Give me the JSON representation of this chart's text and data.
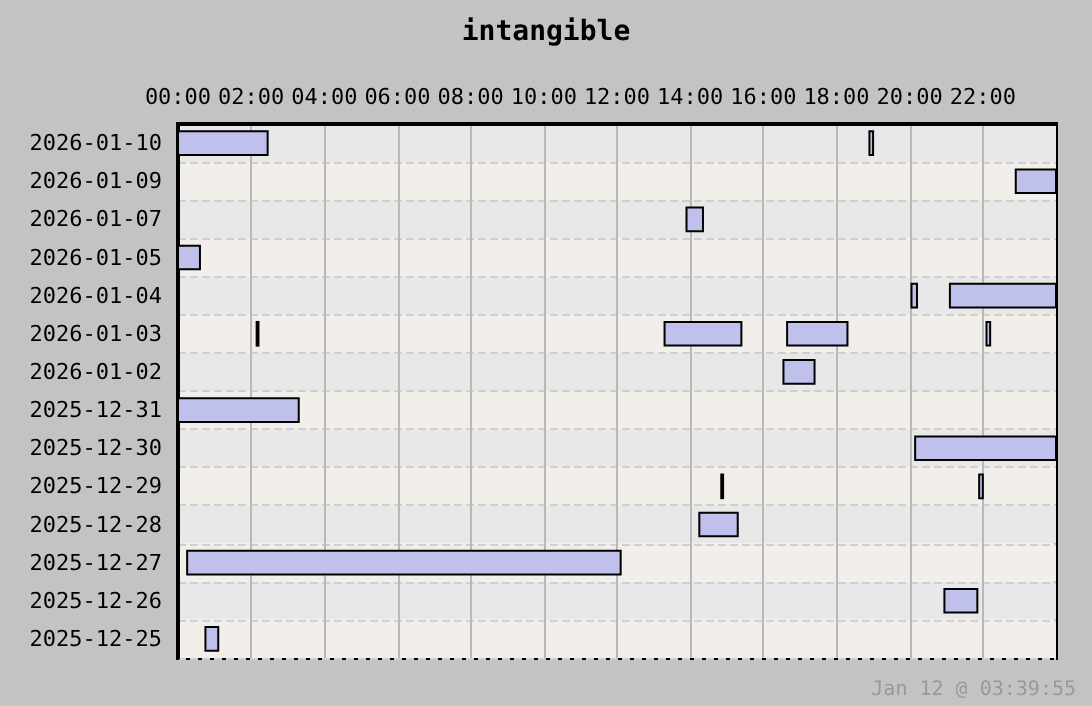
{
  "chart_data": {
    "type": "bar",
    "orientation": "horizontal",
    "title": "intangible",
    "annotations": [
      "Jan 12 @ 03:39:55"
    ],
    "categories": [
      "2026-01-10",
      "2026-01-09",
      "2026-01-07",
      "2026-01-05",
      "2026-01-04",
      "2026-01-03",
      "2026-01-02",
      "2025-12-31",
      "2025-12-30",
      "2025-12-29",
      "2025-12-28",
      "2025-12-27",
      "2025-12-26",
      "2025-12-25"
    ],
    "series": [
      {
        "color": "#c0c0ec",
        "base": [
          0,
          22.9,
          13.9,
          0,
          20.05,
          2.15,
          16.55,
          0,
          20.15,
          14.85,
          14.25,
          0.25,
          20.95,
          0.75
        ],
        "values": [
          2.45,
          1.1,
          0.45,
          0.6,
          0.15,
          0.05,
          0.85,
          3.3,
          3.85,
          0.05,
          1.05,
          11.85,
          0.9,
          0.35
        ]
      },
      {
        "color": "#c0c0ec",
        "base": [
          18.9,
          null,
          null,
          null,
          21.1,
          13.3,
          null,
          null,
          null,
          21.9,
          null,
          null,
          null,
          null
        ],
        "values": [
          0.1,
          null,
          null,
          null,
          2.9,
          2.1,
          null,
          null,
          null,
          0.1,
          null,
          null,
          null,
          null
        ]
      },
      {
        "color": "#c0c0ec",
        "base": [
          null,
          null,
          null,
          null,
          null,
          16.65,
          null,
          null,
          null,
          null,
          null,
          null,
          null,
          null
        ],
        "values": [
          null,
          null,
          null,
          null,
          null,
          1.65,
          null,
          null,
          null,
          null,
          null,
          null,
          null,
          null
        ]
      },
      {
        "color": "#c0c0ec",
        "base": [
          null,
          null,
          null,
          null,
          null,
          22.1,
          null,
          null,
          null,
          null,
          null,
          null,
          null,
          null
        ],
        "values": [
          null,
          null,
          null,
          null,
          null,
          0.1,
          null,
          null,
          null,
          null,
          null,
          null,
          null,
          null
        ]
      }
    ],
    "xlim": [
      0,
      24
    ],
    "xticks": [
      {
        "value": 0,
        "label": "00:00"
      },
      {
        "value": 2,
        "label": "02:00"
      },
      {
        "value": 4,
        "label": "04:00"
      },
      {
        "value": 6,
        "label": "06:00"
      },
      {
        "value": 8,
        "label": "08:00"
      },
      {
        "value": 10,
        "label": "10:00"
      },
      {
        "value": 12,
        "label": "12:00"
      },
      {
        "value": 14,
        "label": "14:00"
      },
      {
        "value": 16,
        "label": "16:00"
      },
      {
        "value": 18,
        "label": "18:00"
      },
      {
        "value": 20,
        "label": "20:00"
      },
      {
        "value": 22,
        "label": "22:00"
      }
    ],
    "grid": true
  }
}
